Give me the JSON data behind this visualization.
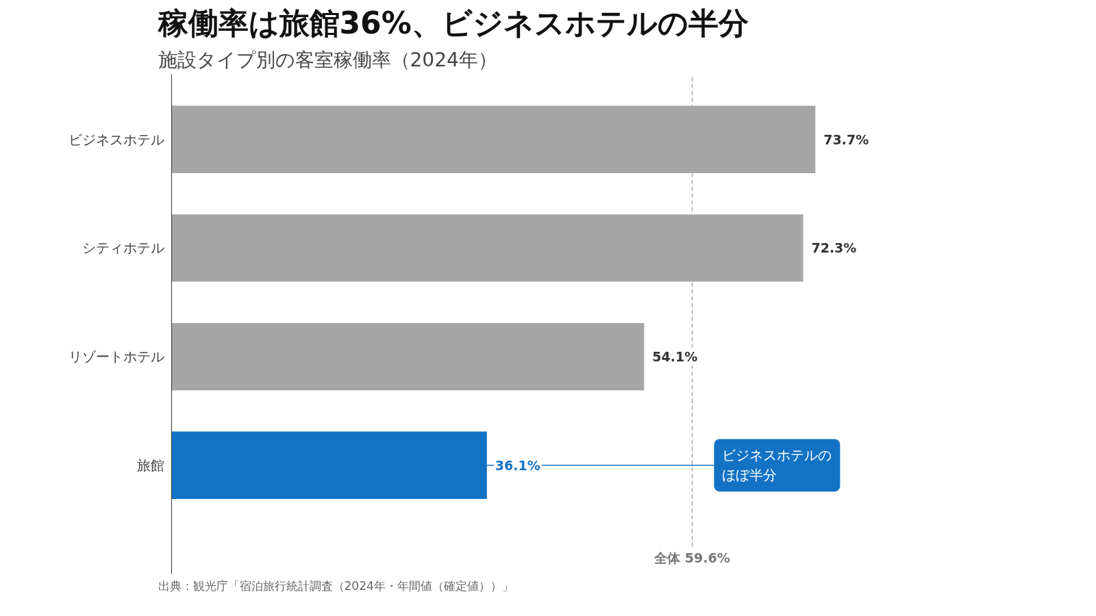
{
  "chart_data": {
    "type": "bar",
    "orientation": "horizontal",
    "title": "稼働率は旅館36%、ビジネスホテルの半分",
    "subtitle": "施設タイプ別の客室稼働率（2024年）",
    "categories": [
      "ビジネスホテル",
      "シティホテル",
      "リゾートホテル",
      "旅館"
    ],
    "values": [
      73.7,
      72.3,
      54.1,
      36.1
    ],
    "colors": [
      "#a6a6a6",
      "#a6a6a6",
      "#a6a6a6",
      "#1372c4"
    ],
    "value_labels": [
      "73.7%",
      "72.3%",
      "54.1%",
      "36.1%"
    ],
    "tick_labels": "y",
    "grid": false,
    "ref_lines": [
      {
        "axis": "x",
        "value": 59.6,
        "label": "全体 59.6%",
        "color": "#a6a6a6",
        "line_style": "dashed"
      }
    ],
    "annotations": [
      {
        "text": "ビジネスホテルのほぼ半分",
        "x": 36.1,
        "y": "旅館"
      },
      "出典：観光庁「宿泊旅行統計調査（2024年・年間値（確定値））」"
    ]
  }
}
